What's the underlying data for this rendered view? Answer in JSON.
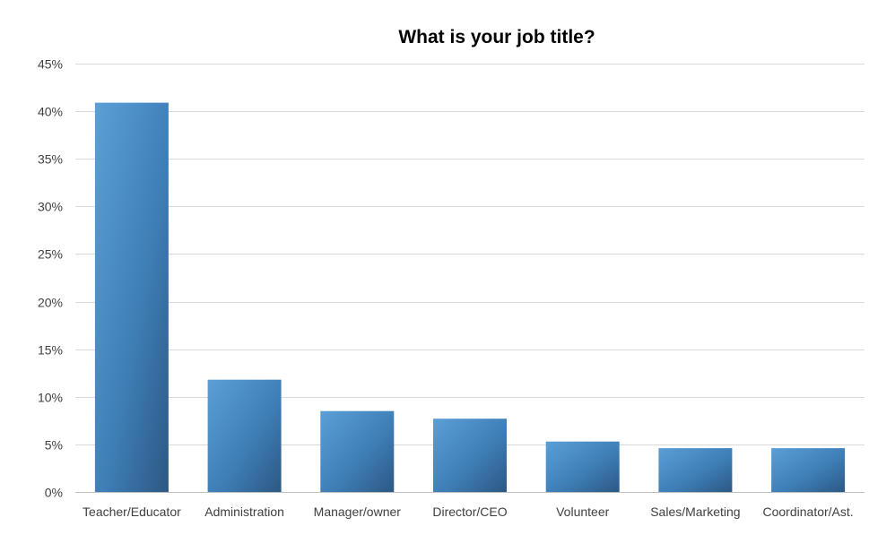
{
  "chart_data": {
    "type": "bar",
    "title": "What is your job title?",
    "categories": [
      "Teacher/Educator",
      "Administration",
      "Manager/owner",
      "Director/CEO",
      "Volunteer",
      "Sales/Marketing",
      "Coordinator/Ast."
    ],
    "values": [
      40.9,
      11.8,
      8.5,
      7.7,
      5.3,
      4.6,
      4.6
    ],
    "ylim": [
      0,
      45
    ],
    "yticks": [
      "0%",
      "5%",
      "10%",
      "15%",
      "20%",
      "25%",
      "30%",
      "35%",
      "40%",
      "45%"
    ],
    "ytick_values": [
      0,
      5,
      10,
      15,
      20,
      25,
      30,
      35,
      40,
      45
    ],
    "grid": true,
    "legend": "none",
    "colors": {
      "bar_light": "#5b9bd5",
      "bar_dark": "#2e5a86",
      "grid": "#d9d9d9",
      "text": "#404040"
    }
  }
}
